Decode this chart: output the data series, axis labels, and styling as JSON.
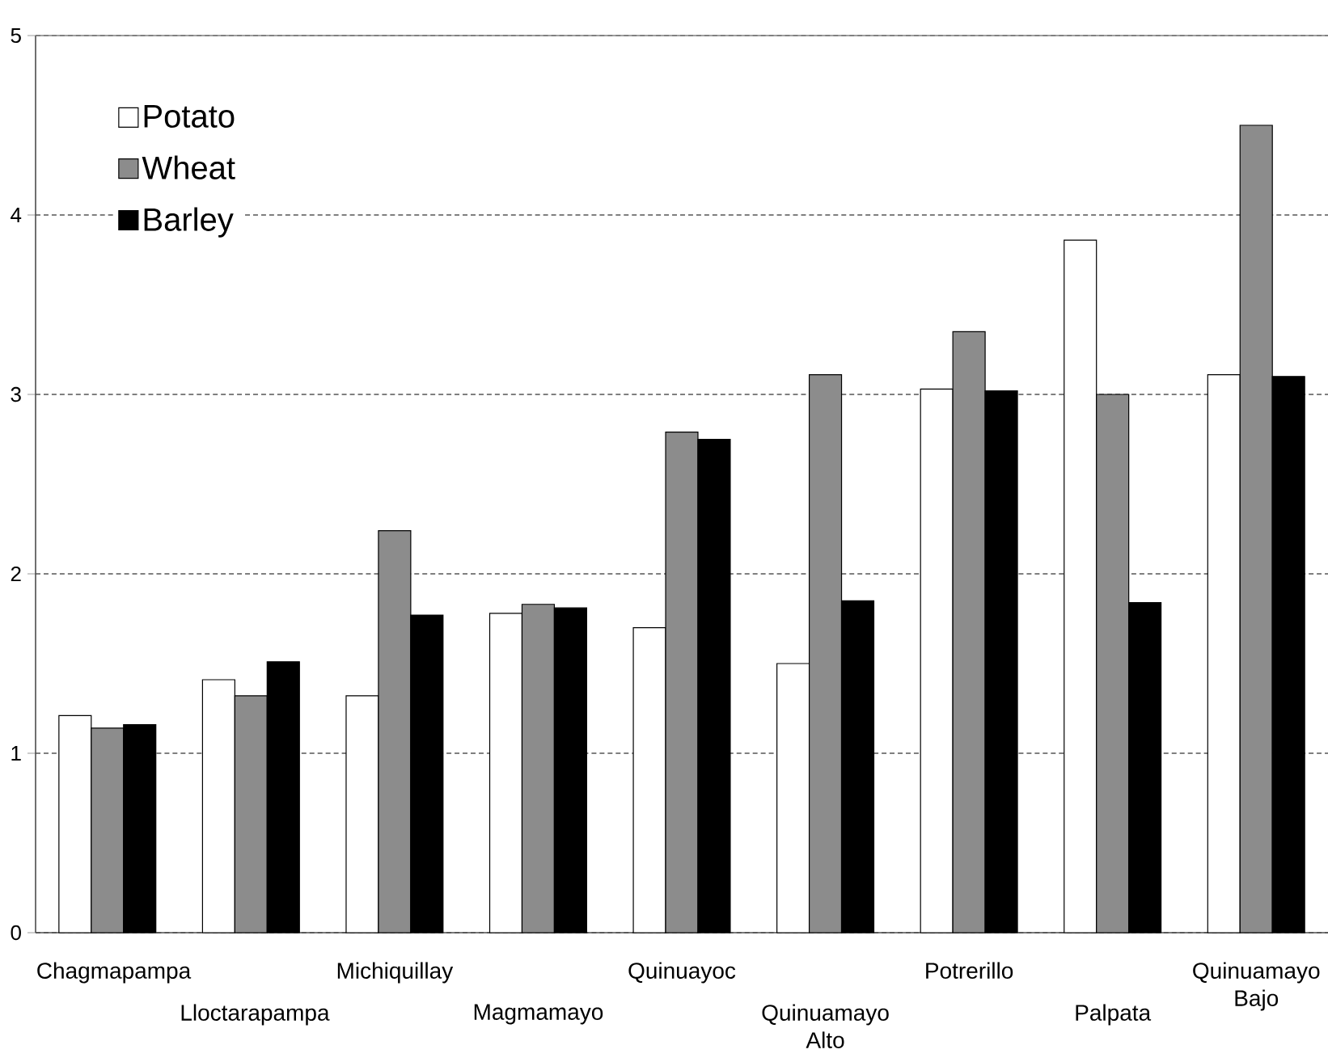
{
  "chart_data": {
    "type": "bar",
    "categories": [
      "Chagmapampa",
      "Lloctarapampa",
      "Michiquillay",
      "Magmamayo",
      "Quinuayoc",
      "Quinuamayo Alto",
      "Potrerillo",
      "Palpata",
      "Quinuamayo Bajo"
    ],
    "series": [
      {
        "name": "Potato",
        "color": "#ffffff",
        "values": [
          1.21,
          1.41,
          1.32,
          1.78,
          1.7,
          1.5,
          3.03,
          3.86,
          3.11
        ]
      },
      {
        "name": "Wheat",
        "color": "#8c8c8c",
        "values": [
          1.14,
          1.32,
          2.24,
          1.83,
          2.79,
          3.11,
          3.35,
          3.0,
          4.5
        ]
      },
      {
        "name": "Barley",
        "color": "#000000",
        "values": [
          1.16,
          1.51,
          1.77,
          1.81,
          2.75,
          1.85,
          3.02,
          1.84,
          3.1
        ]
      }
    ],
    "ylim": [
      0,
      5
    ],
    "yticks": [
      0,
      1,
      2,
      3,
      4,
      5
    ],
    "grid": "y",
    "legend": "top left"
  }
}
